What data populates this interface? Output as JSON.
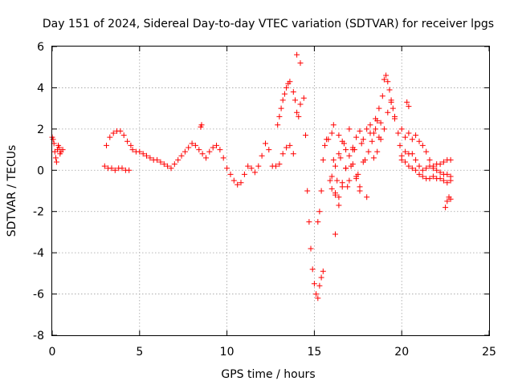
{
  "chart_data": {
    "type": "scatter",
    "title": "Day 151 of 2024, Sidereal Day-to-day VTEC variation (SDTVAR) for receiver lpgs",
    "xlabel": "GPS time / hours",
    "ylabel": "SDTVAR / TECUs",
    "xlim": [
      0,
      25
    ],
    "ylim": [
      -8,
      6
    ],
    "xticks": [
      0,
      5,
      10,
      15,
      20,
      25
    ],
    "yticks": [
      -8,
      -6,
      -4,
      -2,
      0,
      2,
      4,
      6
    ],
    "grid": true,
    "marker": "+",
    "color": "#ff0000",
    "series": [
      {
        "name": "SDTVAR",
        "x": [
          0.0,
          0.1,
          0.2,
          0.3,
          0.4,
          0.5,
          0.6,
          0.05,
          0.15,
          0.25,
          0.35,
          0.45,
          3.0,
          3.2,
          3.4,
          3.6,
          3.8,
          4.0,
          4.2,
          4.4,
          3.1,
          3.3,
          3.5,
          3.7,
          3.9,
          4.1,
          4.3,
          4.5,
          4.6,
          4.8,
          5.0,
          5.2,
          5.4,
          5.6,
          5.8,
          6.0,
          6.2,
          6.4,
          6.6,
          6.8,
          7.0,
          7.2,
          7.4,
          7.6,
          7.8,
          8.0,
          8.2,
          8.4,
          8.6,
          8.8,
          8.5,
          8.55,
          9.0,
          9.2,
          9.4,
          9.6,
          9.8,
          10.0,
          10.2,
          10.4,
          10.6,
          10.8,
          11.0,
          11.2,
          11.4,
          11.6,
          11.8,
          12.0,
          12.2,
          12.4,
          12.6,
          12.8,
          12.9,
          13.0,
          13.1,
          13.2,
          13.3,
          13.4,
          13.5,
          13.6,
          13.8,
          13.9,
          14.0,
          14.1,
          14.2,
          13.0,
          13.2,
          13.4,
          13.6,
          13.8,
          14.0,
          14.2,
          14.4,
          14.5,
          14.6,
          14.7,
          14.8,
          14.9,
          15.0,
          15.1,
          15.2,
          15.3,
          15.4,
          15.5,
          15.2,
          15.3,
          15.4,
          15.5,
          15.6,
          15.7,
          15.8,
          15.9,
          16.0,
          16.1,
          16.0,
          16.2,
          16.4,
          16.6,
          16.8,
          17.0,
          17.2,
          17.4,
          17.6,
          17.8,
          18.0,
          18.2,
          18.4,
          18.6,
          18.8,
          16.1,
          16.3,
          16.5,
          16.7,
          16.9,
          17.1,
          17.3,
          17.5,
          17.7,
          17.9,
          18.1,
          18.3,
          18.5,
          18.7,
          16.2,
          16.4,
          16.6,
          16.8,
          17.0,
          17.2,
          17.4,
          17.6,
          17.8,
          18.0,
          18.2,
          18.4,
          18.6,
          16.0,
          16.2,
          16.4,
          16.6,
          16.8,
          17.0,
          17.2,
          17.4,
          17.6,
          16.2,
          16.4,
          18.5,
          18.7,
          18.9,
          19.0,
          19.1,
          19.2,
          19.3,
          19.4,
          19.5,
          19.6,
          19.8,
          19.9,
          20.0,
          18.8,
          19.0,
          19.2,
          19.4,
          19.6,
          20.0,
          20.2,
          20.4,
          20.6,
          20.8,
          21.0,
          21.2,
          21.4,
          21.6,
          21.8,
          22.0,
          22.2,
          22.4,
          22.6,
          22.8,
          20.0,
          20.2,
          20.4,
          20.6,
          20.8,
          21.0,
          21.2,
          21.4,
          21.6,
          21.8,
          22.0,
          22.2,
          22.4,
          22.6,
          22.8,
          20.2,
          20.4,
          20.6,
          20.8,
          21.0,
          21.2,
          21.4,
          21.6,
          21.8,
          22.0,
          22.2,
          22.4,
          22.6,
          22.8,
          22.5,
          22.6,
          22.7,
          22.8,
          20.3,
          20.4
        ],
        "y": [
          1.6,
          1.3,
          0.6,
          1.0,
          1.1,
          0.9,
          1.0,
          1.5,
          0.9,
          0.4,
          1.2,
          0.8,
          0.2,
          0.1,
          0.1,
          0.0,
          0.1,
          0.1,
          0.0,
          0.0,
          1.2,
          1.6,
          1.8,
          1.9,
          1.9,
          1.7,
          1.4,
          1.2,
          1.0,
          0.9,
          0.9,
          0.8,
          0.7,
          0.6,
          0.5,
          0.5,
          0.4,
          0.3,
          0.2,
          0.1,
          0.3,
          0.5,
          0.7,
          0.9,
          1.1,
          1.3,
          1.2,
          1.0,
          0.8,
          0.6,
          2.1,
          2.2,
          0.9,
          1.1,
          1.2,
          1.0,
          0.6,
          0.1,
          -0.2,
          -0.5,
          -0.7,
          -0.6,
          -0.2,
          0.2,
          0.1,
          -0.1,
          0.2,
          0.7,
          1.3,
          1.0,
          0.2,
          0.2,
          2.2,
          2.6,
          3.0,
          3.4,
          3.7,
          4.0,
          4.2,
          4.3,
          3.8,
          3.4,
          2.8,
          2.6,
          3.2,
          0.3,
          0.8,
          1.1,
          1.2,
          0.8,
          5.6,
          5.2,
          3.5,
          1.7,
          -1.0,
          -2.5,
          -3.8,
          -4.8,
          -5.5,
          -6.0,
          -6.2,
          -5.6,
          -5.2,
          -4.9,
          -2.5,
          -2.0,
          -1.0,
          0.5,
          1.2,
          1.5,
          1.5,
          -0.5,
          1.8,
          2.2,
          -0.3,
          0.2,
          0.8,
          1.4,
          1.0,
          0.7,
          1.1,
          1.6,
          1.9,
          1.5,
          2.0,
          2.2,
          1.8,
          2.4,
          2.3,
          0.5,
          -0.5,
          0.6,
          1.3,
          -0.8,
          0.2,
          1.0,
          -0.2,
          1.3,
          0.5,
          0.9,
          1.4,
          2.0,
          1.6,
          -1.2,
          1.7,
          -0.6,
          0.1,
          2.0,
          1.0,
          -0.4,
          -0.8,
          0.4,
          -1.3,
          1.8,
          0.6,
          0.9,
          -0.9,
          -1.1,
          -1.3,
          -0.8,
          0.1,
          -0.5,
          0.3,
          -0.3,
          -1.0,
          -3.1,
          -1.7,
          2.5,
          3.0,
          3.6,
          4.4,
          4.6,
          4.3,
          3.9,
          3.4,
          3.0,
          2.5,
          1.8,
          1.2,
          0.5,
          1.5,
          2.0,
          2.8,
          3.3,
          2.6,
          2.0,
          1.6,
          1.8,
          1.5,
          1.7,
          1.4,
          1.2,
          0.9,
          0.5,
          0.2,
          0.3,
          0.3,
          0.4,
          0.5,
          0.5,
          0.7,
          0.4,
          0.2,
          0.1,
          0.0,
          -0.2,
          -0.3,
          -0.4,
          -0.4,
          -0.3,
          -0.4,
          -0.4,
          -0.5,
          -0.6,
          -0.5,
          0.9,
          0.8,
          0.8,
          0.5,
          0.2,
          0.0,
          0.1,
          0.2,
          0.1,
          0.0,
          -0.1,
          -0.2,
          -0.2,
          -0.3,
          -1.8,
          -1.5,
          -1.3,
          -1.4,
          3.3,
          3.1
        ]
      }
    ]
  }
}
